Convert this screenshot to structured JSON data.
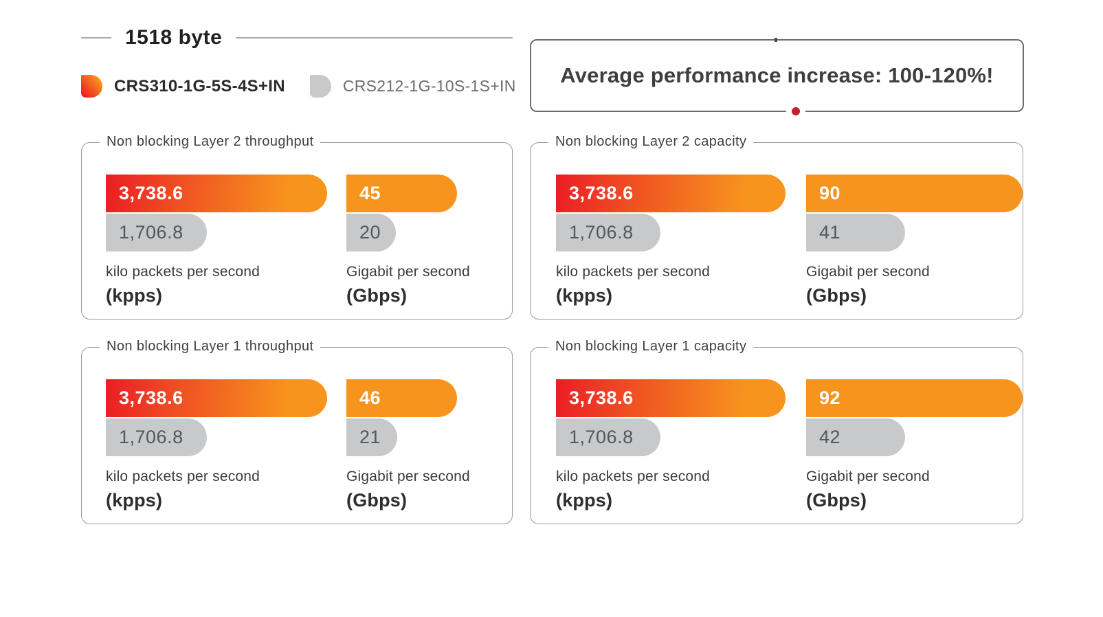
{
  "header": {
    "size_label": "1518 byte",
    "legend": [
      {
        "label": "CRS310-1G-5S-4S+IN",
        "swatch": "red-orange-gradient"
      },
      {
        "label": "CRS212-1G-10S-1S+IN",
        "swatch": "gray"
      }
    ],
    "banner": {
      "text": "Average performance increase: 100-120%!"
    }
  },
  "colors": {
    "red": "#ec1c24",
    "orange": "#f7941d",
    "gray_bar": "#c8c9cb",
    "dark_text": "#3f3f41",
    "gray_text": "#55565a",
    "panel_border": "#97999c",
    "banner_border": "#6d6e71",
    "dot_red": "#c1202e",
    "rule_gray": "#a7a9ac"
  },
  "chart_data": {
    "type": "bar",
    "orientation": "horizontal",
    "series": [
      "CRS310-1G-5S-4S+IN",
      "CRS212-1G-10S-1S+IN"
    ],
    "panels": [
      {
        "title": "Non blocking Layer 2 throughput",
        "groups": [
          {
            "unit": "kilo packets per second",
            "unit_abbr": "(kpps)",
            "values": [
              "3,738.6",
              "1,706.8"
            ],
            "numeric": [
              3738.6,
              1706.8
            ],
            "scale_max": 3738.6,
            "primary_style": "gradient"
          },
          {
            "unit": "Gigabit per second",
            "unit_abbr": "(Gbps)",
            "values": [
              "45",
              "20"
            ],
            "numeric": [
              45,
              20
            ],
            "scale_max": 90,
            "primary_style": "solid"
          }
        ]
      },
      {
        "title": "Non blocking Layer 2 capacity",
        "groups": [
          {
            "unit": "kilo packets per second",
            "unit_abbr": "(kpps)",
            "values": [
              "3,738.6",
              "1,706.8"
            ],
            "numeric": [
              3738.6,
              1706.8
            ],
            "scale_max": 3738.6,
            "primary_style": "gradient"
          },
          {
            "unit": "Gigabit per second",
            "unit_abbr": "(Gbps)",
            "values": [
              "90",
              "41"
            ],
            "numeric": [
              90,
              41
            ],
            "scale_max": 90,
            "primary_style": "solid"
          }
        ]
      },
      {
        "title": "Non blocking Layer 1 throughput",
        "groups": [
          {
            "unit": "kilo packets per second",
            "unit_abbr": "(kpps)",
            "values": [
              "3,738.6",
              "1,706.8"
            ],
            "numeric": [
              3738.6,
              1706.8
            ],
            "scale_max": 3738.6,
            "primary_style": "gradient"
          },
          {
            "unit": "Gigabit per second",
            "unit_abbr": "(Gbps)",
            "values": [
              "46",
              "21"
            ],
            "numeric": [
              46,
              21
            ],
            "scale_max": 92,
            "primary_style": "solid"
          }
        ]
      },
      {
        "title": "Non blocking Layer 1 capacity",
        "groups": [
          {
            "unit": "kilo packets per second",
            "unit_abbr": "(kpps)",
            "values": [
              "3,738.6",
              "1,706.8"
            ],
            "numeric": [
              3738.6,
              1706.8
            ],
            "scale_max": 3738.6,
            "primary_style": "gradient"
          },
          {
            "unit": "Gigabit per second",
            "unit_abbr": "(Gbps)",
            "values": [
              "92",
              "42"
            ],
            "numeric": [
              92,
              42
            ],
            "scale_max": 92,
            "primary_style": "solid"
          }
        ]
      }
    ]
  }
}
